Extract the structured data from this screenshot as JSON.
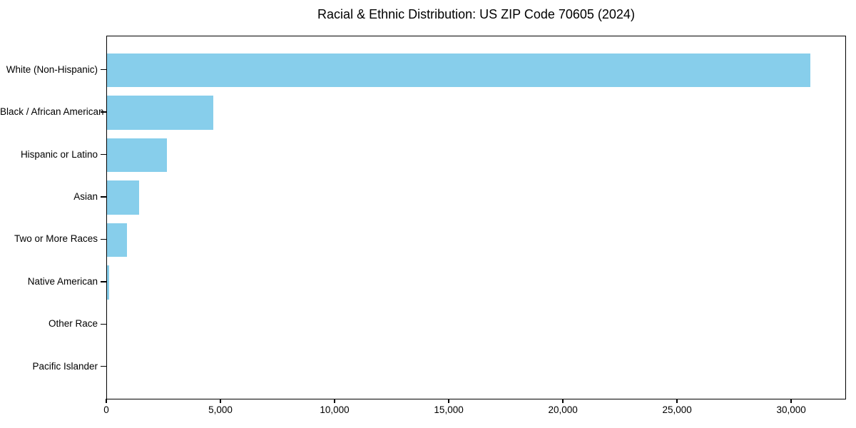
{
  "chart_data": {
    "type": "bar",
    "orientation": "horizontal",
    "title": "Racial & Ethnic Distribution: US ZIP Code 70605 (2024)",
    "xlabel": "",
    "ylabel": "",
    "categories": [
      "White (Non-Hispanic)",
      "Black / African American",
      "Hispanic or Latino",
      "Asian",
      "Two or More Races",
      "Native American",
      "Other Race",
      "Pacific Islander"
    ],
    "values": [
      30870,
      4660,
      2620,
      1420,
      870,
      80,
      0,
      0
    ],
    "xlim": [
      0,
      32400
    ],
    "x_ticks": [
      0,
      5000,
      10000,
      15000,
      20000,
      25000,
      30000
    ],
    "x_tick_labels": [
      "0",
      "5,000",
      "10,000",
      "15,000",
      "20,000",
      "25,000",
      "30,000"
    ],
    "bar_color": "#87CEEB",
    "grid": false,
    "legend": null,
    "spine_color": "#000000",
    "text_color": "#000000"
  }
}
